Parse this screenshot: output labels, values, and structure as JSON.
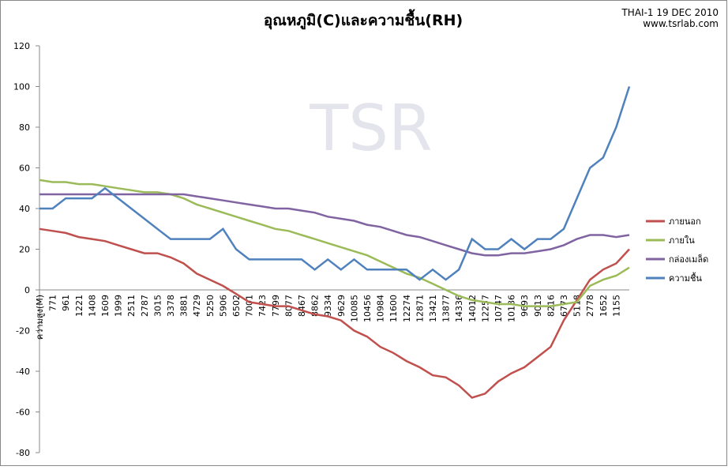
{
  "chart_data": {
    "type": "line",
    "title": "อุณหภูมิ(C)และความชื้น(RH)",
    "source_lines": [
      "THAI-1 19 DEC 2010",
      "www.tsrlab.com"
    ],
    "watermark": "TSR",
    "categories": [
      "ความสูง(M)",
      "771",
      "961",
      "1221",
      "1408",
      "1609",
      "1999",
      "2511",
      "2787",
      "3015",
      "3378",
      "3881",
      "4729",
      "5250",
      "5906",
      "6502",
      "7001",
      "7423",
      "7799",
      "8077",
      "8467",
      "8862",
      "9334",
      "9629",
      "10085",
      "10456",
      "10984",
      "11600",
      "12274",
      "12871",
      "13421",
      "13877",
      "14336",
      "14012",
      "12257",
      "10747",
      "10186",
      "9693",
      "9013",
      "8216",
      "6773",
      "5118",
      "2778",
      "1652",
      "1155",
      null
    ],
    "series": [
      {
        "name": "ภายนอก",
        "color": "#c0504d",
        "values": [
          30,
          29,
          28,
          26,
          25,
          24,
          22,
          20,
          18,
          18,
          16,
          13,
          8,
          5,
          2,
          -2,
          -6,
          -7,
          -8,
          -8,
          -10,
          -12,
          -13,
          -15,
          -20,
          -23,
          -28,
          -31,
          -35,
          -38,
          -42,
          -43,
          -47,
          -53,
          -51,
          -45,
          -41,
          -38,
          -33,
          -28,
          -15,
          -5,
          5,
          10,
          13,
          20
        ]
      },
      {
        "name": "ภายใน",
        "color": "#9bbb59",
        "values": [
          54,
          53,
          53,
          52,
          52,
          51,
          50,
          49,
          48,
          48,
          47,
          45,
          42,
          40,
          38,
          36,
          34,
          32,
          30,
          29,
          27,
          25,
          23,
          21,
          19,
          17,
          14,
          11,
          8,
          6,
          3,
          0,
          -3,
          -5,
          -6,
          -7,
          -7,
          -8,
          -8,
          -8,
          -7,
          -6,
          2,
          5,
          7,
          11
        ]
      },
      {
        "name": "กล่องเมล็ด",
        "color": "#8064a2",
        "values": [
          47,
          47,
          47,
          47,
          47,
          47,
          47,
          47,
          47,
          47,
          47,
          47,
          46,
          45,
          44,
          43,
          42,
          41,
          40,
          40,
          39,
          38,
          36,
          35,
          34,
          32,
          31,
          29,
          27,
          26,
          24,
          22,
          20,
          18,
          17,
          17,
          18,
          18,
          19,
          20,
          22,
          25,
          27,
          27,
          26,
          27
        ]
      },
      {
        "name": "ความชื้น",
        "color": "#4f81bd",
        "values": [
          40,
          40,
          45,
          45,
          45,
          50,
          45,
          40,
          35,
          30,
          25,
          25,
          25,
          25,
          30,
          20,
          15,
          15,
          15,
          15,
          15,
          10,
          15,
          10,
          15,
          10,
          10,
          10,
          10,
          5,
          10,
          5,
          10,
          25,
          20,
          20,
          25,
          20,
          25,
          25,
          30,
          45,
          60,
          65,
          80,
          100
        ]
      }
    ],
    "ylim": [
      -80,
      120
    ],
    "yticks": [
      -80,
      -60,
      -40,
      -20,
      0,
      20,
      40,
      60,
      80,
      100,
      120
    ],
    "grid": false,
    "legend": "right"
  }
}
